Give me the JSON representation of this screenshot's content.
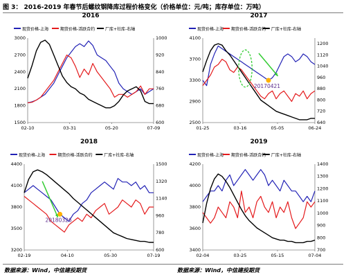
{
  "header": {
    "title": "图 3：    2016-2019 年春节后螺纹钢降库过程价格变化（价格单位：元/吨；库存单位：万吨）"
  },
  "footer": {
    "source_left": "数据来源：Wind，中信建投期货",
    "source_right": "数据来源：Wind，中信建投期货"
  },
  "chart_data": [
    {
      "type": "line",
      "title": "2016",
      "ylim_left": [
        1500,
        3000
      ],
      "yticks_left": [
        1500,
        1800,
        2100,
        2400,
        2700,
        3000
      ],
      "ylim_right": [
        600,
        1000
      ],
      "yticks_right": [
        600,
        680,
        760,
        840,
        920,
        1000
      ],
      "xticks": [
        "02-10",
        "03-31",
        "05-20",
        "07-09"
      ],
      "legend": [
        "现货价格-上海",
        "期货价格-活跃合约",
        "厂库+社库-右轴"
      ],
      "series": [
        {
          "name": "现货价格-上海",
          "color": "#2121b5",
          "axis": "left",
          "values": [
            1850,
            1870,
            1900,
            1950,
            2000,
            2100,
            2200,
            2350,
            2500,
            2650,
            2750,
            2850,
            2900,
            2850,
            2950,
            2870,
            2700,
            2650,
            2600,
            2500,
            2400,
            2200,
            2100,
            2050,
            2000,
            2050,
            2100,
            2000,
            2050,
            2100
          ]
        },
        {
          "name": "期货价格-活跃合约",
          "color": "#e41a1c",
          "axis": "left",
          "values": [
            1850,
            1860,
            1900,
            1950,
            2050,
            2150,
            2250,
            2400,
            2550,
            2700,
            2650,
            2500,
            2300,
            2450,
            2350,
            2550,
            2400,
            2300,
            2200,
            2100,
            1950,
            2000,
            2000,
            1950,
            2000,
            2050,
            2150,
            2000,
            2100,
            2100
          ]
        },
        {
          "name": "厂库+社库-右轴",
          "color": "#000000",
          "axis": "right",
          "values": [
            810,
            870,
            940,
            980,
            990,
            970,
            920,
            870,
            820,
            790,
            770,
            760,
            740,
            730,
            710,
            700,
            690,
            680,
            670,
            670,
            680,
            700,
            730,
            750,
            760,
            770,
            750,
            700,
            690,
            690
          ]
        }
      ]
    },
    {
      "type": "line",
      "title": "2017",
      "ylim_left": [
        2500,
        4100
      ],
      "yticks_left": [
        2500,
        2900,
        3300,
        3700,
        4100
      ],
      "ylim_right": [
        640,
        1240
      ],
      "yticks_right": [
        640,
        720,
        800,
        880,
        960,
        1040,
        1120,
        1200
      ],
      "xticks": [
        "01-25",
        "03-16",
        "05-05",
        "06-24"
      ],
      "legend": [
        "现货价格-上海",
        "期货价格-活跃合约",
        "厂库+社库-右轴"
      ],
      "annotation": "20170421",
      "series": [
        {
          "name": "现货价格-上海",
          "color": "#2121b5",
          "axis": "left",
          "values": [
            3300,
            3200,
            3600,
            3800,
            3950,
            3900,
            3850,
            3800,
            3750,
            3700,
            3650,
            3600,
            3550,
            3500,
            3450,
            3400,
            3350,
            3300,
            3350,
            3450,
            3600,
            3750,
            3800,
            3750,
            3650,
            3700,
            3800,
            3750,
            3650,
            3600
          ]
        },
        {
          "name": "期货价格-活跃合约",
          "color": "#e41a1c",
          "axis": "left",
          "values": [
            3200,
            3300,
            3400,
            3550,
            3600,
            3700,
            3650,
            3500,
            3450,
            3550,
            3500,
            3400,
            3300,
            3200,
            3100,
            3000,
            2950,
            3050,
            3100,
            2950,
            3050,
            3100,
            3000,
            2900,
            3050,
            3000,
            3100,
            2950,
            3050,
            3100
          ]
        },
        {
          "name": "厂库+社库-右轴",
          "color": "#000000",
          "axis": "right",
          "values": [
            1000,
            1080,
            1150,
            1190,
            1200,
            1190,
            1150,
            1120,
            1080,
            1040,
            1000,
            960,
            920,
            880,
            840,
            800,
            780,
            760,
            740,
            720,
            710,
            700,
            690,
            680,
            670,
            660,
            660,
            660,
            670,
            670
          ]
        }
      ]
    },
    {
      "type": "line",
      "title": "2018",
      "ylim_left": [
        3200,
        4400
      ],
      "yticks_left": [
        3200,
        3500,
        3800,
        4100,
        4400
      ],
      "ylim_right": [
        600,
        1500
      ],
      "yticks_right": [
        600,
        780,
        960,
        1140,
        1320,
        1500
      ],
      "xticks": [
        "02-19",
        "04-10",
        "05-30",
        "07-19"
      ],
      "legend": [
        "现货价格-上海",
        "期货价格-活跃合约",
        "厂库+社库-右轴"
      ],
      "annotation": "20180326",
      "series": [
        {
          "name": "现货价格-上海",
          "color": "#2121b5",
          "axis": "left",
          "values": [
            4000,
            4050,
            4100,
            4050,
            4000,
            3950,
            3900,
            3800,
            3700,
            3650,
            3600,
            3700,
            3750,
            3850,
            3900,
            4000,
            4050,
            4100,
            4150,
            4100,
            4050,
            4200,
            4150,
            4150,
            4100,
            4150,
            4050,
            4100,
            4000,
            4000
          ]
        },
        {
          "name": "期货价格-活跃合约",
          "color": "#e41a1c",
          "axis": "left",
          "values": [
            3950,
            3900,
            3850,
            3800,
            3750,
            3700,
            3600,
            3550,
            3500,
            3450,
            3550,
            3600,
            3650,
            3600,
            3700,
            3650,
            3750,
            3800,
            3850,
            3700,
            3750,
            3800,
            3900,
            3850,
            3800,
            3900,
            3850,
            3700,
            3800,
            3800
          ]
        },
        {
          "name": "厂库+社库-右轴",
          "color": "#000000",
          "axis": "right",
          "values": [
            1200,
            1340,
            1420,
            1440,
            1420,
            1390,
            1350,
            1310,
            1270,
            1230,
            1190,
            1140,
            1100,
            1060,
            1020,
            980,
            940,
            900,
            860,
            820,
            780,
            760,
            740,
            720,
            710,
            700,
            690,
            690,
            680,
            680
          ]
        }
      ]
    },
    {
      "type": "line",
      "title": "2019",
      "ylim_left": [
        3400,
        4200
      ],
      "yticks_left": [
        3400,
        3600,
        3800,
        4000,
        4200
      ],
      "ylim_right": [
        700,
        1400
      ],
      "yticks_right": [
        700,
        800,
        900,
        1000,
        1100,
        1200,
        1300,
        1400
      ],
      "xticks": [
        "02-04",
        "03-25",
        "05-15",
        "07-04"
      ],
      "legend": [
        "现货价格-上海",
        "期货价格-活跃合约",
        "厂库+社库-右轴"
      ],
      "series": [
        {
          "name": "现货价格-上海",
          "color": "#2121b5",
          "axis": "left",
          "values": [
            3850,
            3900,
            3950,
            3950,
            4000,
            3950,
            4050,
            4100,
            4000,
            4050,
            4100,
            4150,
            4100,
            4050,
            4100,
            4150,
            4100,
            4000,
            4050,
            4000,
            3950,
            4050,
            4000,
            3950,
            3950,
            3900,
            3850,
            3900,
            3850,
            3950
          ]
        },
        {
          "name": "期货价格-活跃合约",
          "color": "#e41a1c",
          "axis": "left",
          "values": [
            3750,
            3700,
            3650,
            3700,
            3800,
            3750,
            3700,
            3850,
            3800,
            3700,
            3950,
            3750,
            3800,
            3700,
            3850,
            3900,
            3800,
            3750,
            3850,
            3700,
            3800,
            3750,
            3850,
            3700,
            3600,
            3650,
            3700,
            3850,
            3800,
            3850
          ]
        },
        {
          "name": "厂库+社库-右轴",
          "color": "#000000",
          "axis": "right",
          "values": [
            920,
            1080,
            1200,
            1280,
            1320,
            1300,
            1260,
            1210,
            1150,
            1090,
            1030,
            980,
            940,
            910,
            880,
            860,
            840,
            820,
            800,
            790,
            780,
            780,
            770,
            770,
            760,
            760,
            760,
            770,
            770,
            780
          ]
        }
      ]
    }
  ]
}
